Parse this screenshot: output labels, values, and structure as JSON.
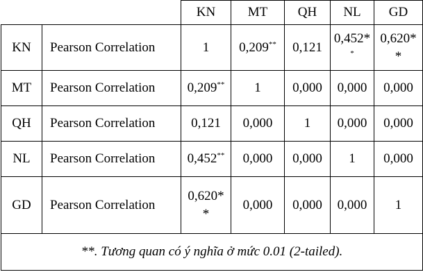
{
  "table": {
    "columns": [
      "KN",
      "MT",
      "QH",
      "NL",
      "GD"
    ],
    "rows": [
      {
        "name": "KN",
        "stat": "Pearson Correlation",
        "cells": [
          {
            "value": "1",
            "mark": ""
          },
          {
            "value": "0,209",
            "mark": "**"
          },
          {
            "value": "0,121",
            "mark": ""
          },
          {
            "value": "0,452*",
            "mark": "*"
          },
          {
            "value": "0,620*",
            "mark": "*"
          }
        ]
      },
      {
        "name": "MT",
        "stat": "Pearson Correlation",
        "cells": [
          {
            "value": "0,209",
            "mark": "**"
          },
          {
            "value": "1",
            "mark": ""
          },
          {
            "value": "0,000",
            "mark": ""
          },
          {
            "value": "0,000",
            "mark": ""
          },
          {
            "value": "0,000",
            "mark": ""
          }
        ]
      },
      {
        "name": "QH",
        "stat": "Pearson Correlation",
        "cells": [
          {
            "value": "0,121",
            "mark": ""
          },
          {
            "value": "0,000",
            "mark": ""
          },
          {
            "value": "1",
            "mark": ""
          },
          {
            "value": "0,000",
            "mark": ""
          },
          {
            "value": "0,000",
            "mark": ""
          }
        ]
      },
      {
        "name": "NL",
        "stat": "Pearson Correlation",
        "cells": [
          {
            "value": "0,452",
            "mark": "**"
          },
          {
            "value": "0,000",
            "mark": ""
          },
          {
            "value": "0,000",
            "mark": ""
          },
          {
            "value": "1",
            "mark": ""
          },
          {
            "value": "0,000",
            "mark": ""
          }
        ]
      },
      {
        "name": "GD",
        "stat": "Pearson Correlation",
        "cells": [
          {
            "value": "0,620*",
            "mark": "*"
          },
          {
            "value": "0,000",
            "mark": ""
          },
          {
            "value": "0,000",
            "mark": ""
          },
          {
            "value": "0,000",
            "mark": ""
          },
          {
            "value": "1",
            "mark": ""
          }
        ]
      }
    ],
    "footnote": "**. Tương quan có ý nghĩa ở mức 0.01 (2-tailed)."
  }
}
